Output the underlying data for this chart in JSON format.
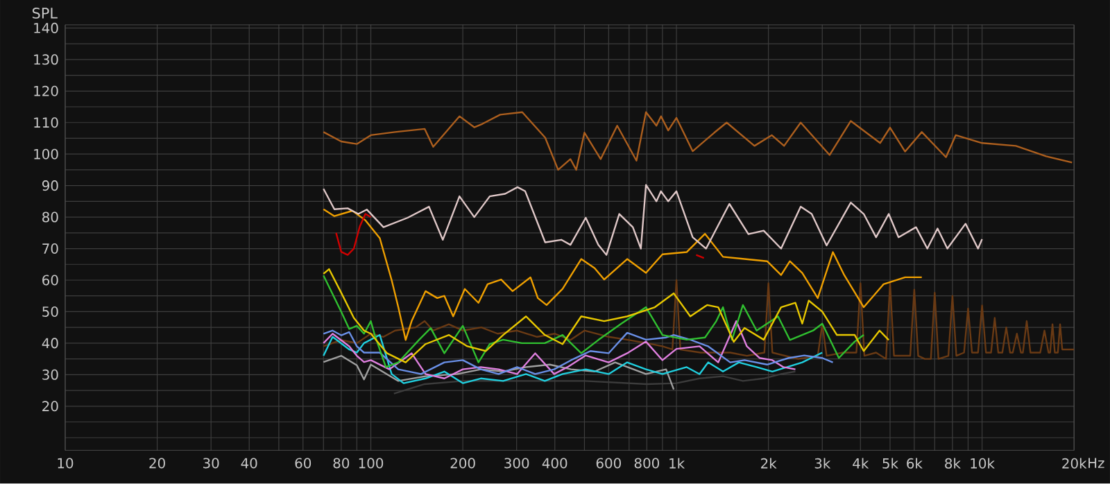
{
  "chart_data": {
    "type": "line",
    "ylabel": "SPL",
    "log": "x",
    "grid": true,
    "xlim": [
      10,
      20000
    ],
    "ylim": [
      6,
      141
    ],
    "xticks": [
      10,
      20,
      30,
      40,
      {
        "value": 50,
        "label": null
      },
      60,
      {
        "value": 70,
        "label": null
      },
      80,
      {
        "value": 90,
        "label": null
      },
      100,
      200,
      300,
      400,
      {
        "value": 500,
        "label": null
      },
      600,
      {
        "value": 700,
        "label": null
      },
      800,
      {
        "value": 900,
        "label": null
      },
      {
        "value": 1000,
        "label": "1k"
      },
      {
        "value": 2000,
        "label": "2k"
      },
      {
        "value": 3000,
        "label": "3k"
      },
      {
        "value": 4000,
        "label": "4k"
      },
      {
        "value": 5000,
        "label": "5k"
      },
      {
        "value": 6000,
        "label": "6k"
      },
      {
        "value": 7000,
        "label": null
      },
      {
        "value": 8000,
        "label": "8k"
      },
      {
        "value": 9000,
        "label": null
      },
      {
        "value": 10000,
        "label": "10k"
      },
      {
        "value": 20000,
        "label": "20k"
      }
    ],
    "xlabel": "Hz",
    "yticks": [
      {
        "value": 10,
        "label": null
      },
      {
        "value": 15,
        "label": null
      },
      20,
      {
        "value": 25,
        "label": null
      },
      30,
      {
        "value": 35,
        "label": null
      },
      40,
      {
        "value": 45,
        "label": null
      },
      50,
      {
        "value": 55,
        "label": null
      },
      60,
      {
        "value": 65,
        "label": null
      },
      70,
      {
        "value": 75,
        "label": null
      },
      80,
      {
        "value": 85,
        "label": null
      },
      90,
      {
        "value": 95,
        "label": null
      },
      100,
      {
        "value": 105,
        "label": null
      },
      110,
      {
        "value": 115,
        "label": null
      },
      120,
      {
        "value": 125,
        "label": null
      },
      130,
      {
        "value": 135,
        "label": null
      },
      140
    ],
    "series": [
      {
        "color": "#6a3a14",
        "x": [
          70,
          80,
          90,
          100,
          110,
          120,
          140,
          150,
          160,
          180,
          200,
          230,
          260,
          300,
          350,
          400,
          450,
          500,
          600,
          700,
          800,
          900,
          970,
          1000,
          1030,
          1200,
          1500,
          1700,
          1940,
          2000,
          2060,
          2500,
          2900,
          3000,
          3100,
          3500,
          3880,
          4000,
          4120,
          4500,
          4850,
          5000,
          5150,
          5500,
          5820,
          6000,
          6180,
          6500,
          6800,
          7000,
          7200,
          7760,
          8000,
          8240,
          8730,
          9000,
          9270,
          9700,
          10000,
          10300,
          10700,
          11000,
          11300,
          11650,
          12000,
          12350,
          12600,
          13000,
          13400,
          13600,
          14000,
          14400,
          15500,
          16000,
          16500,
          16700,
          17000,
          17300,
          17700,
          18000,
          18300,
          20000
        ],
        "values": [
          39,
          41,
          40,
          43,
          42,
          44,
          45,
          47,
          44,
          46,
          44,
          45,
          43,
          44,
          42,
          43,
          41,
          44,
          42,
          41,
          40,
          39,
          38,
          60,
          38,
          37,
          37,
          36,
          37,
          59,
          37,
          35,
          36,
          46,
          36,
          37,
          37,
          59,
          36,
          37,
          35,
          59,
          36,
          36,
          36,
          57,
          36,
          35,
          35,
          56,
          35,
          36,
          55,
          36,
          37,
          51,
          37,
          37,
          52,
          37,
          37,
          48,
          37,
          37,
          45,
          37,
          37,
          43,
          37,
          37,
          47,
          37,
          37,
          44,
          37,
          37,
          46,
          37,
          37,
          46,
          38,
          38
        ]
      },
      {
        "color": "#3c3c3c",
        "x": [
          119,
          150,
          200,
          300,
          500,
          800,
          1000,
          1190,
          1420,
          1650,
          1930,
          2200,
          2450
        ],
        "values": [
          24,
          27,
          28,
          28,
          28,
          27,
          27.3,
          28.8,
          29.5,
          28,
          28.8,
          30.2,
          31
        ]
      },
      {
        "color": "#a0a0a0",
        "x": [
          70,
          80,
          90,
          95,
          100,
          123,
          151,
          192,
          229,
          271,
          322,
          385,
          452,
          540,
          630,
          795,
          925,
          980
        ],
        "values": [
          34,
          36,
          33,
          28.5,
          33.2,
          28,
          29.5,
          30.2,
          31.7,
          31,
          32.4,
          33.2,
          31.7,
          31,
          33.9,
          30.2,
          31.7,
          25.3
        ]
      },
      {
        "color": "#20d0e0",
        "x": [
          70,
          75,
          85,
          90,
          95,
          107,
          117,
          128,
          151,
          174,
          200,
          229,
          271,
          322,
          371,
          424,
          505,
          600,
          690,
          795,
          900,
          1080,
          1190,
          1270,
          1420,
          1600,
          1830,
          2060,
          2580,
          3000
        ],
        "values": [
          36,
          42,
          38,
          37,
          40,
          42.6,
          30.2,
          27.3,
          28.8,
          31,
          27.3,
          28.8,
          28,
          30.2,
          28,
          30.2,
          31.7,
          30.2,
          33.9,
          31.7,
          30.2,
          32.4,
          30.2,
          33.9,
          31,
          33.9,
          32.4,
          31,
          33.9,
          37
        ]
      },
      {
        "color": "#e080e0",
        "x": [
          70,
          75,
          85,
          90,
          95,
          100,
          115,
          136,
          151,
          174,
          200,
          229,
          262,
          301,
          345,
          398,
          440,
          505,
          600,
          690,
          795,
          900,
          1000,
          1190,
          1370,
          1570,
          1700,
          1870,
          2060,
          2240,
          2450
        ],
        "values": [
          40,
          43,
          39,
          36,
          34,
          34.6,
          31.7,
          36.8,
          30.2,
          28.8,
          31.7,
          32.4,
          31.7,
          30.2,
          36.8,
          30.2,
          32.4,
          36.1,
          33.9,
          36.8,
          40.5,
          34.6,
          38.2,
          39,
          33.9,
          47,
          39,
          35.3,
          34.6,
          32.4,
          31.7
        ]
      },
      {
        "color": "#6a90e8",
        "x": [
          70,
          75,
          80,
          85,
          90,
          95,
          107,
          123,
          146,
          174,
          200,
          229,
          262,
          301,
          345,
          398,
          452,
          523,
          600,
          690,
          795,
          925,
          980,
          1110,
          1270,
          1500,
          1670,
          1980,
          2330,
          2620,
          3000,
          3250
        ],
        "values": [
          43,
          44,
          42.5,
          43.5,
          39,
          37,
          37,
          31.7,
          30.2,
          33.9,
          34.6,
          31.7,
          30.2,
          32.4,
          30.2,
          31.7,
          34.6,
          37.5,
          36.8,
          43.3,
          41.1,
          41.8,
          42.6,
          41.1,
          39,
          33.9,
          34.6,
          33.2,
          35.3,
          36.1,
          35.3,
          33.9
        ]
      },
      {
        "color": "#30c030",
        "x": [
          70,
          80,
          85,
          90,
          95,
          100,
          103,
          112,
          123,
          144,
          157,
          174,
          200,
          225,
          245,
          271,
          312,
          371,
          424,
          488,
          555,
          660,
          795,
          900,
          1080,
          1240,
          1350,
          1420,
          1520,
          1650,
          1830,
          2150,
          2350,
          2800,
          3000,
          3400,
          3830,
          4100
        ],
        "values": [
          61.5,
          50,
          44.5,
          45.5,
          43,
          47,
          42.6,
          32.4,
          33.9,
          41.1,
          44.8,
          36.8,
          45.5,
          33.9,
          39.7,
          41.1,
          40,
          40,
          42.6,
          36.8,
          41,
          46.2,
          51.4,
          42.6,
          41.1,
          41.8,
          47,
          51.4,
          41.1,
          52.1,
          44,
          48.5,
          41,
          44,
          46.2,
          35.3,
          40.5,
          42.6
        ]
      },
      {
        "color": "#e8c800",
        "x": [
          70,
          73,
          80,
          88,
          95,
          100,
          113,
          130,
          151,
          180,
          207,
          238,
          271,
          322,
          371,
          424,
          488,
          580,
          690,
          850,
          980,
          1110,
          1260,
          1370,
          1540,
          1670,
          1930,
          2200,
          2450,
          2580,
          2710,
          3000,
          3350,
          3830,
          4100,
          4620,
          4950
        ],
        "values": [
          62,
          63.5,
          56,
          48,
          44,
          43,
          36.8,
          33.9,
          39.7,
          42.6,
          39,
          37.5,
          42.6,
          48.5,
          42.6,
          39.7,
          48.5,
          47,
          48.5,
          51.4,
          55.8,
          48.5,
          52.1,
          51.4,
          40.4,
          44.8,
          41.1,
          51.4,
          52.8,
          46.2,
          53.5,
          50,
          42.6,
          42.6,
          37.5,
          44,
          41
        ]
      },
      {
        "color": "#f0a000",
        "x": [
          70,
          76,
          87,
          96,
          107,
          117,
          123,
          130,
          136,
          151,
          165,
          174,
          186,
          203,
          225,
          241,
          267,
          291,
          333,
          352,
          376,
          424,
          488,
          540,
          580,
          690,
          795,
          900,
          1080,
          1240,
          1420,
          1670,
          1980,
          2200,
          2350,
          2580,
          2900,
          3250,
          3540,
          4100,
          4760,
          5600,
          6350
        ],
        "values": [
          82.5,
          80.3,
          82,
          79,
          73.3,
          60,
          51.4,
          41,
          47,
          56.5,
          54.3,
          55,
          48.5,
          57.2,
          52.8,
          58.7,
          60.2,
          56.5,
          60.9,
          54.3,
          52.1,
          57.2,
          66.7,
          63.8,
          60.2,
          66.7,
          62.3,
          68.2,
          68.9,
          74.7,
          67.4,
          66.7,
          66,
          61.6,
          66,
          62.3,
          54.3,
          68.9,
          61.6,
          51.4,
          58.7,
          60.9,
          60.9
        ]
      },
      {
        "color": "#d00000",
        "x": [
          77,
          80,
          84,
          88,
          92,
          96,
          100,
          1100,
          1160,
          1230
        ],
        "values": [
          75,
          69,
          68,
          70,
          77,
          81,
          80,
          null,
          68,
          67
        ]
      },
      {
        "color": "#e0c8c8",
        "x": [
          70,
          76,
          84,
          91,
          97,
          110,
          132,
          155,
          172,
          195,
          218,
          245,
          275,
          302,
          320,
          372,
          420,
          450,
          505,
          555,
          590,
          650,
          720,
          765,
          795,
          860,
          890,
          940,
          1000,
          1130,
          1250,
          1490,
          1720,
          1930,
          2200,
          2550,
          2770,
          3100,
          3720,
          4100,
          4500,
          4950,
          5330,
          6080,
          6620,
          7150,
          7700,
          8830,
          9700,
          10000
        ],
        "values": [
          89,
          82.5,
          82.8,
          81,
          82.4,
          76.8,
          79.8,
          83.3,
          72.8,
          86.6,
          80,
          86.6,
          87.4,
          89.5,
          88.2,
          72,
          72.8,
          71.2,
          79.8,
          71.2,
          68,
          81,
          76.8,
          70,
          90.2,
          85,
          88.2,
          85,
          88.2,
          73.6,
          70,
          84.2,
          74.6,
          75.7,
          70,
          83.3,
          81,
          71,
          84.6,
          81,
          73.6,
          81,
          73.6,
          76.8,
          70,
          76.4,
          70,
          77.9,
          70,
          73
        ]
      },
      {
        "color": "#ad5f1e",
        "x": [
          70,
          80,
          90,
          100,
          120,
          150,
          160,
          195,
          218,
          232,
          265,
          313,
          372,
          410,
          450,
          470,
          500,
          565,
          640,
          740,
          795,
          860,
          890,
          940,
          1000,
          1130,
          1330,
          1460,
          1800,
          2050,
          2250,
          2550,
          3170,
          3720,
          4640,
          5000,
          5600,
          6350,
          7620,
          8200,
          10000,
          12900,
          16200,
          19700
        ],
        "values": [
          107,
          104,
          103.2,
          106,
          107,
          108,
          102.3,
          112,
          108.5,
          109.6,
          112.5,
          113.3,
          105.2,
          95,
          98.4,
          95,
          106.8,
          98.4,
          109,
          97.9,
          113.3,
          109,
          112,
          107.5,
          111.5,
          100.9,
          106.8,
          110,
          102.6,
          106,
          102.6,
          110,
          99.7,
          110.5,
          103.5,
          108.4,
          100.8,
          107,
          99,
          106,
          103.5,
          102.6,
          99.3,
          97.3
        ]
      }
    ]
  }
}
